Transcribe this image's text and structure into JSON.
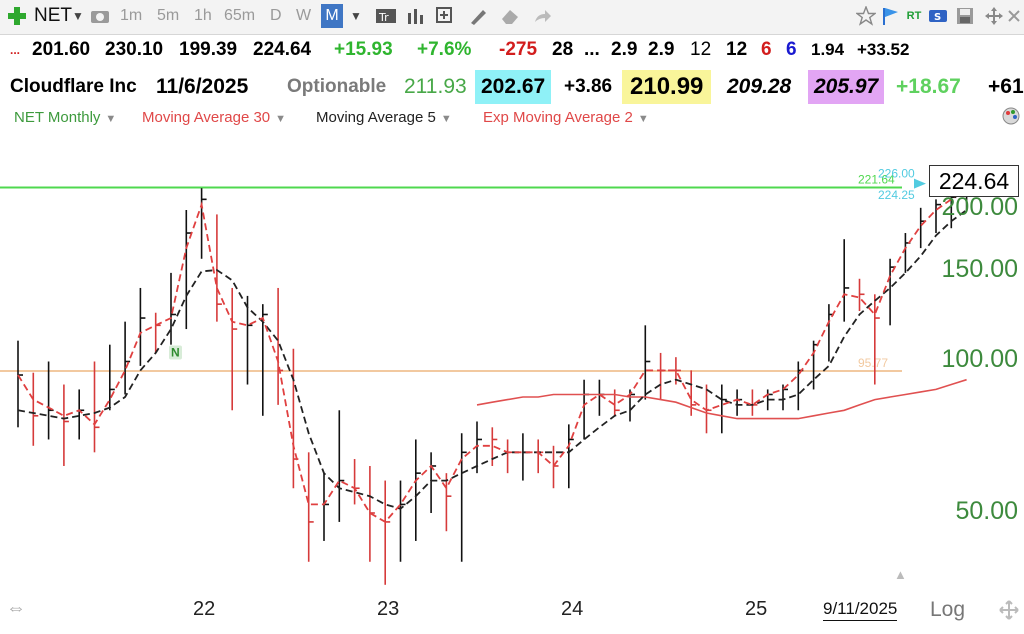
{
  "toolbar": {
    "add_icon": "green-plus-icon",
    "symbol": "NET",
    "periods": [
      "1m",
      "5m",
      "1h",
      "65m",
      "D",
      "W",
      "M"
    ],
    "selected_period": "M",
    "right_icons": [
      "star-icon",
      "flag-icon",
      "rt-icon",
      "screen-icon",
      "save-icon",
      "move-icon"
    ],
    "rt_label": "RT",
    "s_label": "S"
  },
  "quote_row": {
    "ellipsis": "...",
    "open": "201.60",
    "high": "230.10",
    "low": "199.39",
    "close": "224.64",
    "change": "+15.93",
    "change_pct": "+7.6%",
    "v1": "-275",
    "v2": "28",
    "v3": "...",
    "v4": "2.9",
    "v5": "2.9",
    "v6": "12",
    "v7": "12",
    "v8": "6",
    "v9": "6",
    "v10": "1.94",
    "v11": "+33.52"
  },
  "info_row": {
    "company": "Cloudflare Inc",
    "date": "11/6/2025",
    "optionable": "Optionable",
    "p1": "211.93",
    "p2": "202.67",
    "p3": "+3.86",
    "p4": "210.99",
    "p5": "209.28",
    "p6": "205.97",
    "p7": "+18.67",
    "p8": "+61"
  },
  "legend": {
    "items": [
      {
        "label": "NET Monthly",
        "color": "#3d9a3d"
      },
      {
        "label": "Moving Average 30",
        "color": "#e04848"
      },
      {
        "label": "Moving Average 5",
        "color": "#222222"
      },
      {
        "label": "Exp Moving Average 2",
        "color": "#e04848"
      }
    ]
  },
  "chart_data": {
    "type": "line",
    "symbol": "NET",
    "timeframe": "Monthly",
    "y_scale": "log",
    "ylim": [
      32,
      250
    ],
    "y_ticks": [
      "200.00",
      "150.00",
      "100.00",
      "50.00"
    ],
    "x_labels": [
      "22",
      "23",
      "24",
      "25"
    ],
    "last_price": "224.64",
    "horizontal_lines": [
      {
        "value": 221.64,
        "label": "221.64",
        "color": "#4fd84f"
      },
      {
        "value": 95.77,
        "label": "95.77",
        "color": "#f2c9a0"
      }
    ],
    "extra_labels": [
      {
        "value": 226.0,
        "label": "226.00",
        "color": "#52cbe0"
      },
      {
        "value": 224.25,
        "label": "224.25",
        "color": "#52cbe0"
      }
    ],
    "n_marker": "N",
    "date_label": "9/11/2025",
    "log_label": "Log",
    "bars": [
      {
        "h": 110,
        "l": 74,
        "c": 94,
        "u": true
      },
      {
        "h": 95,
        "l": 68,
        "c": 78,
        "u": false
      },
      {
        "h": 100,
        "l": 70,
        "c": 80,
        "u": true
      },
      {
        "h": 90,
        "l": 62,
        "c": 76,
        "u": false
      },
      {
        "h": 88,
        "l": 70,
        "c": 80,
        "u": true
      },
      {
        "h": 100,
        "l": 66,
        "c": 74,
        "u": false
      },
      {
        "h": 108,
        "l": 80,
        "c": 88,
        "u": true
      },
      {
        "h": 120,
        "l": 86,
        "c": 100,
        "u": true
      },
      {
        "h": 140,
        "l": 98,
        "c": 122,
        "u": true
      },
      {
        "h": 125,
        "l": 104,
        "c": 118,
        "u": false
      },
      {
        "h": 150,
        "l": 108,
        "c": 124,
        "u": true
      },
      {
        "h": 200,
        "l": 116,
        "c": 180,
        "u": true
      },
      {
        "h": 221,
        "l": 160,
        "c": 210,
        "u": true
      },
      {
        "h": 196,
        "l": 120,
        "c": 130,
        "u": false
      },
      {
        "h": 140,
        "l": 80,
        "c": 116,
        "u": false
      },
      {
        "h": 135,
        "l": 90,
        "c": 118,
        "u": true
      },
      {
        "h": 130,
        "l": 78,
        "c": 124,
        "u": true
      },
      {
        "h": 140,
        "l": 82,
        "c": 96,
        "u": false
      },
      {
        "h": 106,
        "l": 56,
        "c": 64,
        "u": false
      },
      {
        "h": 66,
        "l": 40,
        "c": 48,
        "u": false
      },
      {
        "h": 60,
        "l": 44,
        "c": 52,
        "u": true
      },
      {
        "h": 80,
        "l": 48,
        "c": 58,
        "u": true
      },
      {
        "h": 64,
        "l": 52,
        "c": 56,
        "u": false
      },
      {
        "h": 62,
        "l": 40,
        "c": 50,
        "u": false
      },
      {
        "h": 58,
        "l": 36,
        "c": 48,
        "u": false
      },
      {
        "h": 58,
        "l": 40,
        "c": 52,
        "u": true
      },
      {
        "h": 70,
        "l": 44,
        "c": 60,
        "u": true
      },
      {
        "h": 66,
        "l": 50,
        "c": 62,
        "u": true
      },
      {
        "h": 60,
        "l": 46,
        "c": 54,
        "u": false
      },
      {
        "h": 72,
        "l": 40,
        "c": 66,
        "u": true
      },
      {
        "h": 76,
        "l": 60,
        "c": 70,
        "u": true
      },
      {
        "h": 74,
        "l": 62,
        "c": 70,
        "u": false
      },
      {
        "h": 70,
        "l": 60,
        "c": 66,
        "u": false
      },
      {
        "h": 72,
        "l": 58,
        "c": 66,
        "u": true
      },
      {
        "h": 70,
        "l": 60,
        "c": 66,
        "u": false
      },
      {
        "h": 68,
        "l": 56,
        "c": 62,
        "u": false
      },
      {
        "h": 75,
        "l": 56,
        "c": 70,
        "u": true
      },
      {
        "h": 92,
        "l": 70,
        "c": 86,
        "u": true
      },
      {
        "h": 92,
        "l": 78,
        "c": 86,
        "u": true
      },
      {
        "h": 88,
        "l": 78,
        "c": 80,
        "u": false
      },
      {
        "h": 88,
        "l": 76,
        "c": 86,
        "u": true
      },
      {
        "h": 118,
        "l": 84,
        "c": 100,
        "u": true
      },
      {
        "h": 104,
        "l": 84,
        "c": 96,
        "u": false
      },
      {
        "h": 102,
        "l": 90,
        "c": 96,
        "u": false
      },
      {
        "h": 96,
        "l": 78,
        "c": 82,
        "u": false
      },
      {
        "h": 90,
        "l": 72,
        "c": 80,
        "u": false
      },
      {
        "h": 90,
        "l": 72,
        "c": 84,
        "u": true
      },
      {
        "h": 88,
        "l": 78,
        "c": 84,
        "u": true
      },
      {
        "h": 88,
        "l": 78,
        "c": 82,
        "u": false
      },
      {
        "h": 88,
        "l": 80,
        "c": 86,
        "u": true
      },
      {
        "h": 90,
        "l": 80,
        "c": 88,
        "u": true
      },
      {
        "h": 100,
        "l": 80,
        "c": 96,
        "u": true
      },
      {
        "h": 110,
        "l": 88,
        "c": 108,
        "u": true
      },
      {
        "h": 130,
        "l": 100,
        "c": 124,
        "u": true
      },
      {
        "h": 175,
        "l": 120,
        "c": 140,
        "u": true
      },
      {
        "h": 146,
        "l": 126,
        "c": 136,
        "u": false
      },
      {
        "h": 136,
        "l": 90,
        "c": 122,
        "u": false
      },
      {
        "h": 160,
        "l": 118,
        "c": 154,
        "u": true
      },
      {
        "h": 180,
        "l": 150,
        "c": 172,
        "u": true
      },
      {
        "h": 202,
        "l": 168,
        "c": 190,
        "u": true
      },
      {
        "h": 210,
        "l": 180,
        "c": 205,
        "u": true
      },
      {
        "h": 220,
        "l": 184,
        "c": 212,
        "u": true
      },
      {
        "h": 230,
        "l": 199,
        "c": 224.64,
        "u": true
      }
    ],
    "ema2": [
      94,
      84,
      81,
      78,
      80,
      75,
      84,
      96,
      114,
      118,
      122,
      168,
      205,
      140,
      120,
      118,
      122,
      100,
      68,
      52,
      52,
      58,
      56,
      50,
      48,
      52,
      58,
      62,
      56,
      64,
      68,
      68,
      66,
      66,
      66,
      62,
      68,
      82,
      86,
      82,
      86,
      96,
      96,
      96,
      84,
      80,
      82,
      84,
      82,
      86,
      88,
      94,
      104,
      120,
      136,
      134,
      124,
      148,
      168,
      186,
      200,
      210,
      222
    ],
    "ma5": [
      80,
      79,
      78,
      77,
      78,
      79,
      81,
      85,
      96,
      104,
      116,
      135,
      151,
      152,
      145,
      128,
      120,
      110,
      92,
      72,
      60,
      56,
      55,
      54,
      52,
      51,
      54,
      58,
      58,
      60,
      62,
      64,
      66,
      66,
      66,
      66,
      66,
      70,
      74,
      78,
      80,
      86,
      90,
      92,
      90,
      88,
      84,
      82,
      82,
      84,
      84,
      86,
      92,
      98,
      112,
      124,
      132,
      140,
      150,
      162,
      178,
      190,
      200
    ],
    "ma30": [
      null,
      null,
      null,
      null,
      null,
      null,
      null,
      null,
      null,
      null,
      null,
      null,
      null,
      null,
      null,
      null,
      null,
      null,
      null,
      null,
      null,
      null,
      null,
      null,
      null,
      null,
      null,
      null,
      null,
      null,
      82,
      83,
      84,
      85,
      85,
      86,
      86,
      86,
      86,
      86,
      85,
      85,
      84,
      83,
      81,
      79,
      78,
      77,
      77,
      77,
      77,
      77,
      78,
      79,
      80,
      82,
      84,
      85,
      86,
      87,
      88,
      90,
      92
    ]
  }
}
